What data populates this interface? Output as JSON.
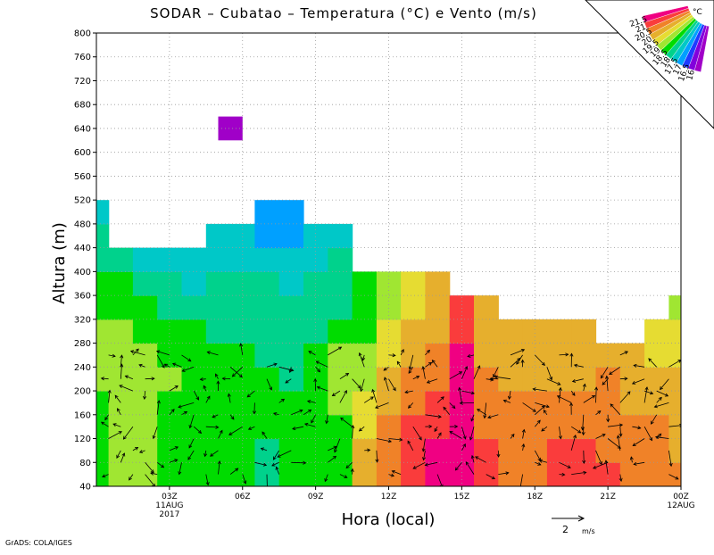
{
  "title": "SODAR – Cubatao – Temperatura (°C) e Vento (m/s)",
  "credit": "GrADS: COLA/IGES",
  "chart_data": {
    "type": "heatmap",
    "title": "SODAR – Cubatao – Temperatura (°C) e Vento (m/s)",
    "xlabel": "Hora (local)",
    "ylabel": "Altura (m)",
    "ylim": [
      40,
      800
    ],
    "yticks": [
      "40",
      "80",
      "120",
      "160",
      "200",
      "240",
      "280",
      "320",
      "360",
      "400",
      "440",
      "480",
      "520",
      "560",
      "600",
      "640",
      "680",
      "720",
      "760",
      "800"
    ],
    "xticks": [
      {
        "h": 3,
        "label": "03Z",
        "sub1": "11AUG",
        "sub2": "2017"
      },
      {
        "h": 6,
        "label": "06Z"
      },
      {
        "h": 9,
        "label": "09Z"
      },
      {
        "h": 12,
        "label": "12Z"
      },
      {
        "h": 15,
        "label": "15Z"
      },
      {
        "h": 18,
        "label": "18Z"
      },
      {
        "h": 21,
        "label": "21Z"
      },
      {
        "h": 24,
        "label": "00Z",
        "sub1": "12AUG"
      }
    ],
    "grid": true,
    "colorbar": {
      "unit": "°C",
      "levels": [
        "16",
        "16.5",
        "17",
        "17.5",
        "18",
        "18.5",
        "19",
        "19.5",
        "20",
        "20.5",
        "21",
        "21.5"
      ],
      "colors": [
        "#a000c8",
        "#8200dc",
        "#1e3cff",
        "#00a0ff",
        "#00c8c8",
        "#00d28c",
        "#00dc00",
        "#a0e632",
        "#e6dc32",
        "#e6af2d",
        "#f08228",
        "#fa3c3c",
        "#f00082"
      ]
    },
    "wind_key": {
      "value": "2",
      "unit": "m/s"
    },
    "hours": [
      0,
      1,
      2,
      3,
      4,
      5,
      6,
      7,
      8,
      9,
      10,
      11,
      12,
      13,
      14,
      15,
      16,
      17,
      18,
      19,
      20,
      21,
      22,
      23,
      24
    ],
    "profile_top_m": [
      520,
      460,
      460,
      460,
      460,
      500,
      500,
      520,
      520,
      480,
      480,
      420,
      420,
      420,
      420,
      380,
      380,
      340,
      340,
      340,
      340,
      300,
      300,
      340,
      380
    ],
    "temperature_profiles": [
      {
        "h": 0,
        "t": [
          18.9,
          18.9,
          18.9,
          18.9,
          19.0,
          19.1,
          19.2,
          18.9,
          18.6,
          18.3,
          18.0,
          17.8,
          17.5
        ]
      },
      {
        "h": 1,
        "t": [
          19.1,
          19.1,
          19.1,
          19.0,
          19.1,
          19.1,
          19.1,
          18.8,
          18.5,
          18.1,
          17.9,
          17.6,
          17.5
        ]
      },
      {
        "h": 2,
        "t": [
          19.0,
          19.1,
          19.2,
          19.2,
          19.2,
          19.1,
          18.9,
          18.5,
          18.2,
          17.9,
          17.7
        ]
      },
      {
        "h": 3,
        "t": [
          18.8,
          18.8,
          18.9,
          18.9,
          19.0,
          18.9,
          18.7,
          18.3,
          18.0,
          17.8,
          17.6
        ]
      },
      {
        "h": 4,
        "t": [
          18.6,
          18.7,
          18.7,
          18.8,
          18.8,
          18.7,
          18.5,
          18.2,
          17.9,
          17.6,
          17.4
        ]
      },
      {
        "h": 5,
        "t": [
          18.5,
          18.6,
          18.6,
          18.6,
          18.6,
          18.5,
          18.3,
          18.2,
          18.0,
          17.8,
          17.5,
          17.3,
          17.2
        ]
      },
      {
        "h": 6,
        "t": [
          18.5,
          18.5,
          18.6,
          18.6,
          18.6,
          18.5,
          18.4,
          18.3,
          18.1,
          17.9,
          17.6,
          17.3,
          17.2
        ]
      },
      {
        "h": 7,
        "t": [
          18.3,
          18.4,
          18.5,
          18.5,
          18.5,
          18.4,
          18.3,
          18.2,
          18.0,
          17.7,
          17.4,
          17.2,
          16.8,
          16.3
        ]
      },
      {
        "h": 8,
        "t": [
          18.5,
          18.5,
          18.5,
          18.5,
          18.4,
          18.3,
          18.2,
          18.0,
          17.9,
          17.7,
          17.4,
          17.2,
          17.0,
          16.5
        ]
      },
      {
        "h": 9,
        "t": [
          18.5,
          18.6,
          18.7,
          18.8,
          18.8,
          18.6,
          18.4,
          18.2,
          18.1,
          17.9,
          17.7,
          17.4,
          17.3
        ]
      },
      {
        "h": 10,
        "t": [
          18.7,
          18.8,
          18.9,
          19.0,
          19.1,
          19.0,
          18.6,
          18.4,
          18.2,
          18.0,
          17.8,
          17.6
        ]
      },
      {
        "h": 11,
        "t": [
          20.2,
          20.0,
          19.7,
          19.5,
          19.3,
          19.0,
          18.8,
          18.7,
          18.5,
          18.3
        ]
      },
      {
        "h": 12,
        "t": [
          20.9,
          20.7,
          20.5,
          20.2,
          20.0,
          19.8,
          19.6,
          19.3,
          19.1,
          18.9
        ]
      },
      {
        "h": 13,
        "t": [
          21.2,
          21.1,
          21.0,
          20.8,
          20.6,
          20.4,
          20.2,
          19.8,
          19.5,
          19.2
        ]
      },
      {
        "h": 14,
        "t": [
          21.6,
          21.5,
          21.4,
          21.1,
          20.8,
          20.6,
          20.4,
          20.2,
          20.0,
          19.8
        ]
      },
      {
        "h": 15,
        "t": [
          21.8,
          21.9,
          21.9,
          21.9,
          21.8,
          21.6,
          21.4,
          21.1,
          20.8
        ]
      },
      {
        "h": 16,
        "t": [
          21.1,
          21.0,
          20.9,
          20.8,
          20.6,
          20.4,
          20.2,
          20.0,
          19.9
        ]
      },
      {
        "h": 17,
        "t": [
          20.8,
          20.8,
          20.8,
          20.6,
          20.4,
          20.2,
          20.1,
          20.0
        ]
      },
      {
        "h": 18,
        "t": [
          20.8,
          20.8,
          20.7,
          20.5,
          20.3,
          20.1,
          20.0,
          20.0
        ]
      },
      {
        "h": 19,
        "t": [
          21.0,
          21.0,
          20.9,
          20.7,
          20.4,
          20.2,
          20.0,
          19.9
        ]
      },
      {
        "h": 20,
        "t": [
          21.2,
          21.0,
          20.8,
          20.6,
          20.3,
          20.1,
          20.0,
          19.9
        ]
      },
      {
        "h": 21,
        "t": [
          21.0,
          20.9,
          20.8,
          20.7,
          20.5,
          20.3,
          20.1
        ]
      },
      {
        "h": 22,
        "t": [
          20.8,
          20.7,
          20.6,
          20.4,
          20.2,
          20.0,
          19.9
        ]
      },
      {
        "h": 23,
        "t": [
          20.7,
          20.6,
          20.5,
          20.3,
          20.1,
          19.8,
          19.6,
          19.3
        ]
      },
      {
        "h": 24,
        "t": [
          20.5,
          20.4,
          20.3,
          20.2,
          20.0,
          19.7,
          19.5,
          19.2,
          19.0
        ]
      }
    ]
  }
}
